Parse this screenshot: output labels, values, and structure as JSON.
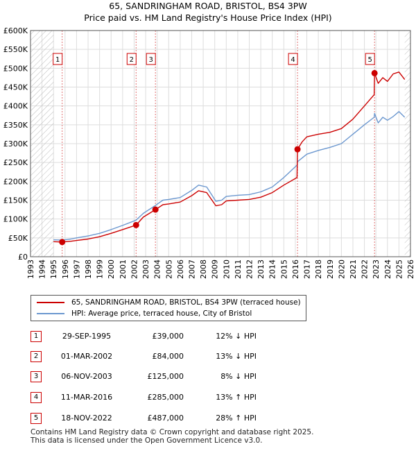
{
  "title_line1": "65, SANDRINGHAM ROAD, BRISTOL, BS4 3PW",
  "title_line2": "Price paid vs. HM Land Registry's House Price Index (HPI)",
  "colors": {
    "property": "#cc0000",
    "hpi": "#6b97cf",
    "marker_line": "#e07070",
    "grid": "#dddddd",
    "hatch": "#bbbbbb"
  },
  "chart_data": {
    "type": "line",
    "x_range": [
      1993,
      2026
    ],
    "y_range": [
      0,
      600000
    ],
    "x_ticks": [
      1993,
      1994,
      1995,
      1996,
      1997,
      1998,
      1999,
      2000,
      2001,
      2002,
      2003,
      2004,
      2005,
      2006,
      2007,
      2008,
      2009,
      2010,
      2011,
      2012,
      2013,
      2014,
      2015,
      2016,
      2017,
      2018,
      2019,
      2020,
      2021,
      2022,
      2023,
      2024,
      2025,
      2026
    ],
    "y_ticks": [
      {
        "v": 0,
        "label": "£0"
      },
      {
        "v": 50000,
        "label": "£50K"
      },
      {
        "v": 100000,
        "label": "£100K"
      },
      {
        "v": 150000,
        "label": "£150K"
      },
      {
        "v": 200000,
        "label": "£200K"
      },
      {
        "v": 250000,
        "label": "£250K"
      },
      {
        "v": 300000,
        "label": "£300K"
      },
      {
        "v": 350000,
        "label": "£350K"
      },
      {
        "v": 400000,
        "label": "£400K"
      },
      {
        "v": 450000,
        "label": "£450K"
      },
      {
        "v": 500000,
        "label": "£500K"
      },
      {
        "v": 550000,
        "label": "£550K"
      },
      {
        "v": 600000,
        "label": "£600K"
      }
    ],
    "data_start": 1995.0,
    "data_end": 2025.5,
    "series": [
      {
        "name": "65, SANDRINGHAM ROAD, BRISTOL, BS4 3PW (terraced house)",
        "color": "#cc0000",
        "points": [
          [
            1995.0,
            40000
          ],
          [
            1995.75,
            39000
          ],
          [
            1996.5,
            41000
          ],
          [
            1997,
            43000
          ],
          [
            1998,
            47000
          ],
          [
            1999,
            53000
          ],
          [
            2000,
            62000
          ],
          [
            2001,
            72000
          ],
          [
            2002.17,
            84000
          ],
          [
            2002.8,
            105000
          ],
          [
            2003.85,
            125000
          ],
          [
            2004.5,
            138000
          ],
          [
            2005,
            140000
          ],
          [
            2006,
            145000
          ],
          [
            2007,
            162000
          ],
          [
            2007.6,
            175000
          ],
          [
            2008.3,
            170000
          ],
          [
            2009.1,
            135000
          ],
          [
            2009.6,
            138000
          ],
          [
            2010,
            148000
          ],
          [
            2011,
            150000
          ],
          [
            2012,
            152000
          ],
          [
            2013,
            158000
          ],
          [
            2014,
            170000
          ],
          [
            2015,
            190000
          ],
          [
            2016.15,
            210000
          ],
          [
            2016.19,
            285000
          ],
          [
            2016.6,
            305000
          ],
          [
            2017,
            318000
          ],
          [
            2018,
            325000
          ],
          [
            2019,
            330000
          ],
          [
            2020,
            340000
          ],
          [
            2021,
            365000
          ],
          [
            2022,
            400000
          ],
          [
            2022.85,
            430000
          ],
          [
            2022.88,
            487000
          ],
          [
            2023.2,
            460000
          ],
          [
            2023.6,
            475000
          ],
          [
            2024,
            465000
          ],
          [
            2024.5,
            485000
          ],
          [
            2025,
            490000
          ],
          [
            2025.5,
            470000
          ]
        ]
      },
      {
        "name": "HPI: Average price, terraced house, City of Bristol",
        "color": "#6b97cf",
        "points": [
          [
            1995.0,
            45000
          ],
          [
            1995.75,
            44000
          ],
          [
            1996.5,
            47000
          ],
          [
            1997,
            50000
          ],
          [
            1998,
            55000
          ],
          [
            1999,
            62000
          ],
          [
            2000,
            72000
          ],
          [
            2001,
            83000
          ],
          [
            2002.17,
            97000
          ],
          [
            2002.8,
            115000
          ],
          [
            2003.85,
            136000
          ],
          [
            2004.5,
            150000
          ],
          [
            2005,
            152000
          ],
          [
            2006,
            157000
          ],
          [
            2007,
            176000
          ],
          [
            2007.6,
            190000
          ],
          [
            2008.3,
            185000
          ],
          [
            2009.1,
            147000
          ],
          [
            2009.6,
            150000
          ],
          [
            2010,
            160000
          ],
          [
            2011,
            163000
          ],
          [
            2012,
            165000
          ],
          [
            2013,
            172000
          ],
          [
            2014,
            185000
          ],
          [
            2015,
            210000
          ],
          [
            2016.15,
            243000
          ],
          [
            2016.19,
            252000
          ],
          [
            2016.6,
            262000
          ],
          [
            2017,
            272000
          ],
          [
            2018,
            282000
          ],
          [
            2019,
            290000
          ],
          [
            2020,
            300000
          ],
          [
            2021,
            325000
          ],
          [
            2022,
            350000
          ],
          [
            2022.85,
            370000
          ],
          [
            2022.88,
            380000
          ],
          [
            2023.2,
            355000
          ],
          [
            2023.6,
            370000
          ],
          [
            2024,
            362000
          ],
          [
            2024.5,
            372000
          ],
          [
            2025,
            385000
          ],
          [
            2025.5,
            370000
          ]
        ]
      }
    ],
    "sales": [
      {
        "num": "1",
        "x": 1995.75,
        "price": 39000
      },
      {
        "num": "2",
        "x": 2002.17,
        "price": 84000
      },
      {
        "num": "3",
        "x": 2003.85,
        "price": 125000
      },
      {
        "num": "4",
        "x": 2016.19,
        "price": 285000
      },
      {
        "num": "5",
        "x": 2022.88,
        "price": 487000
      }
    ]
  },
  "legend": {
    "property_label": "65, SANDRINGHAM ROAD, BRISTOL, BS4 3PW (terraced house)",
    "hpi_label": "HPI: Average price, terraced house, City of Bristol"
  },
  "sales_table": [
    {
      "num": "1",
      "date": "29-SEP-1995",
      "price": "£39,000",
      "hpi": "12% ↓ HPI"
    },
    {
      "num": "2",
      "date": "01-MAR-2002",
      "price": "£84,000",
      "hpi": "13% ↓ HPI"
    },
    {
      "num": "3",
      "date": "06-NOV-2003",
      "price": "£125,000",
      "hpi": "8% ↓ HPI"
    },
    {
      "num": "4",
      "date": "11-MAR-2016",
      "price": "£285,000",
      "hpi": "13% ↑ HPI"
    },
    {
      "num": "5",
      "date": "18-NOV-2022",
      "price": "£487,000",
      "hpi": "28% ↑ HPI"
    }
  ],
  "footer_line1": "Contains HM Land Registry data © Crown copyright and database right 2025.",
  "footer_line2": "This data is licensed under the Open Government Licence v3.0."
}
